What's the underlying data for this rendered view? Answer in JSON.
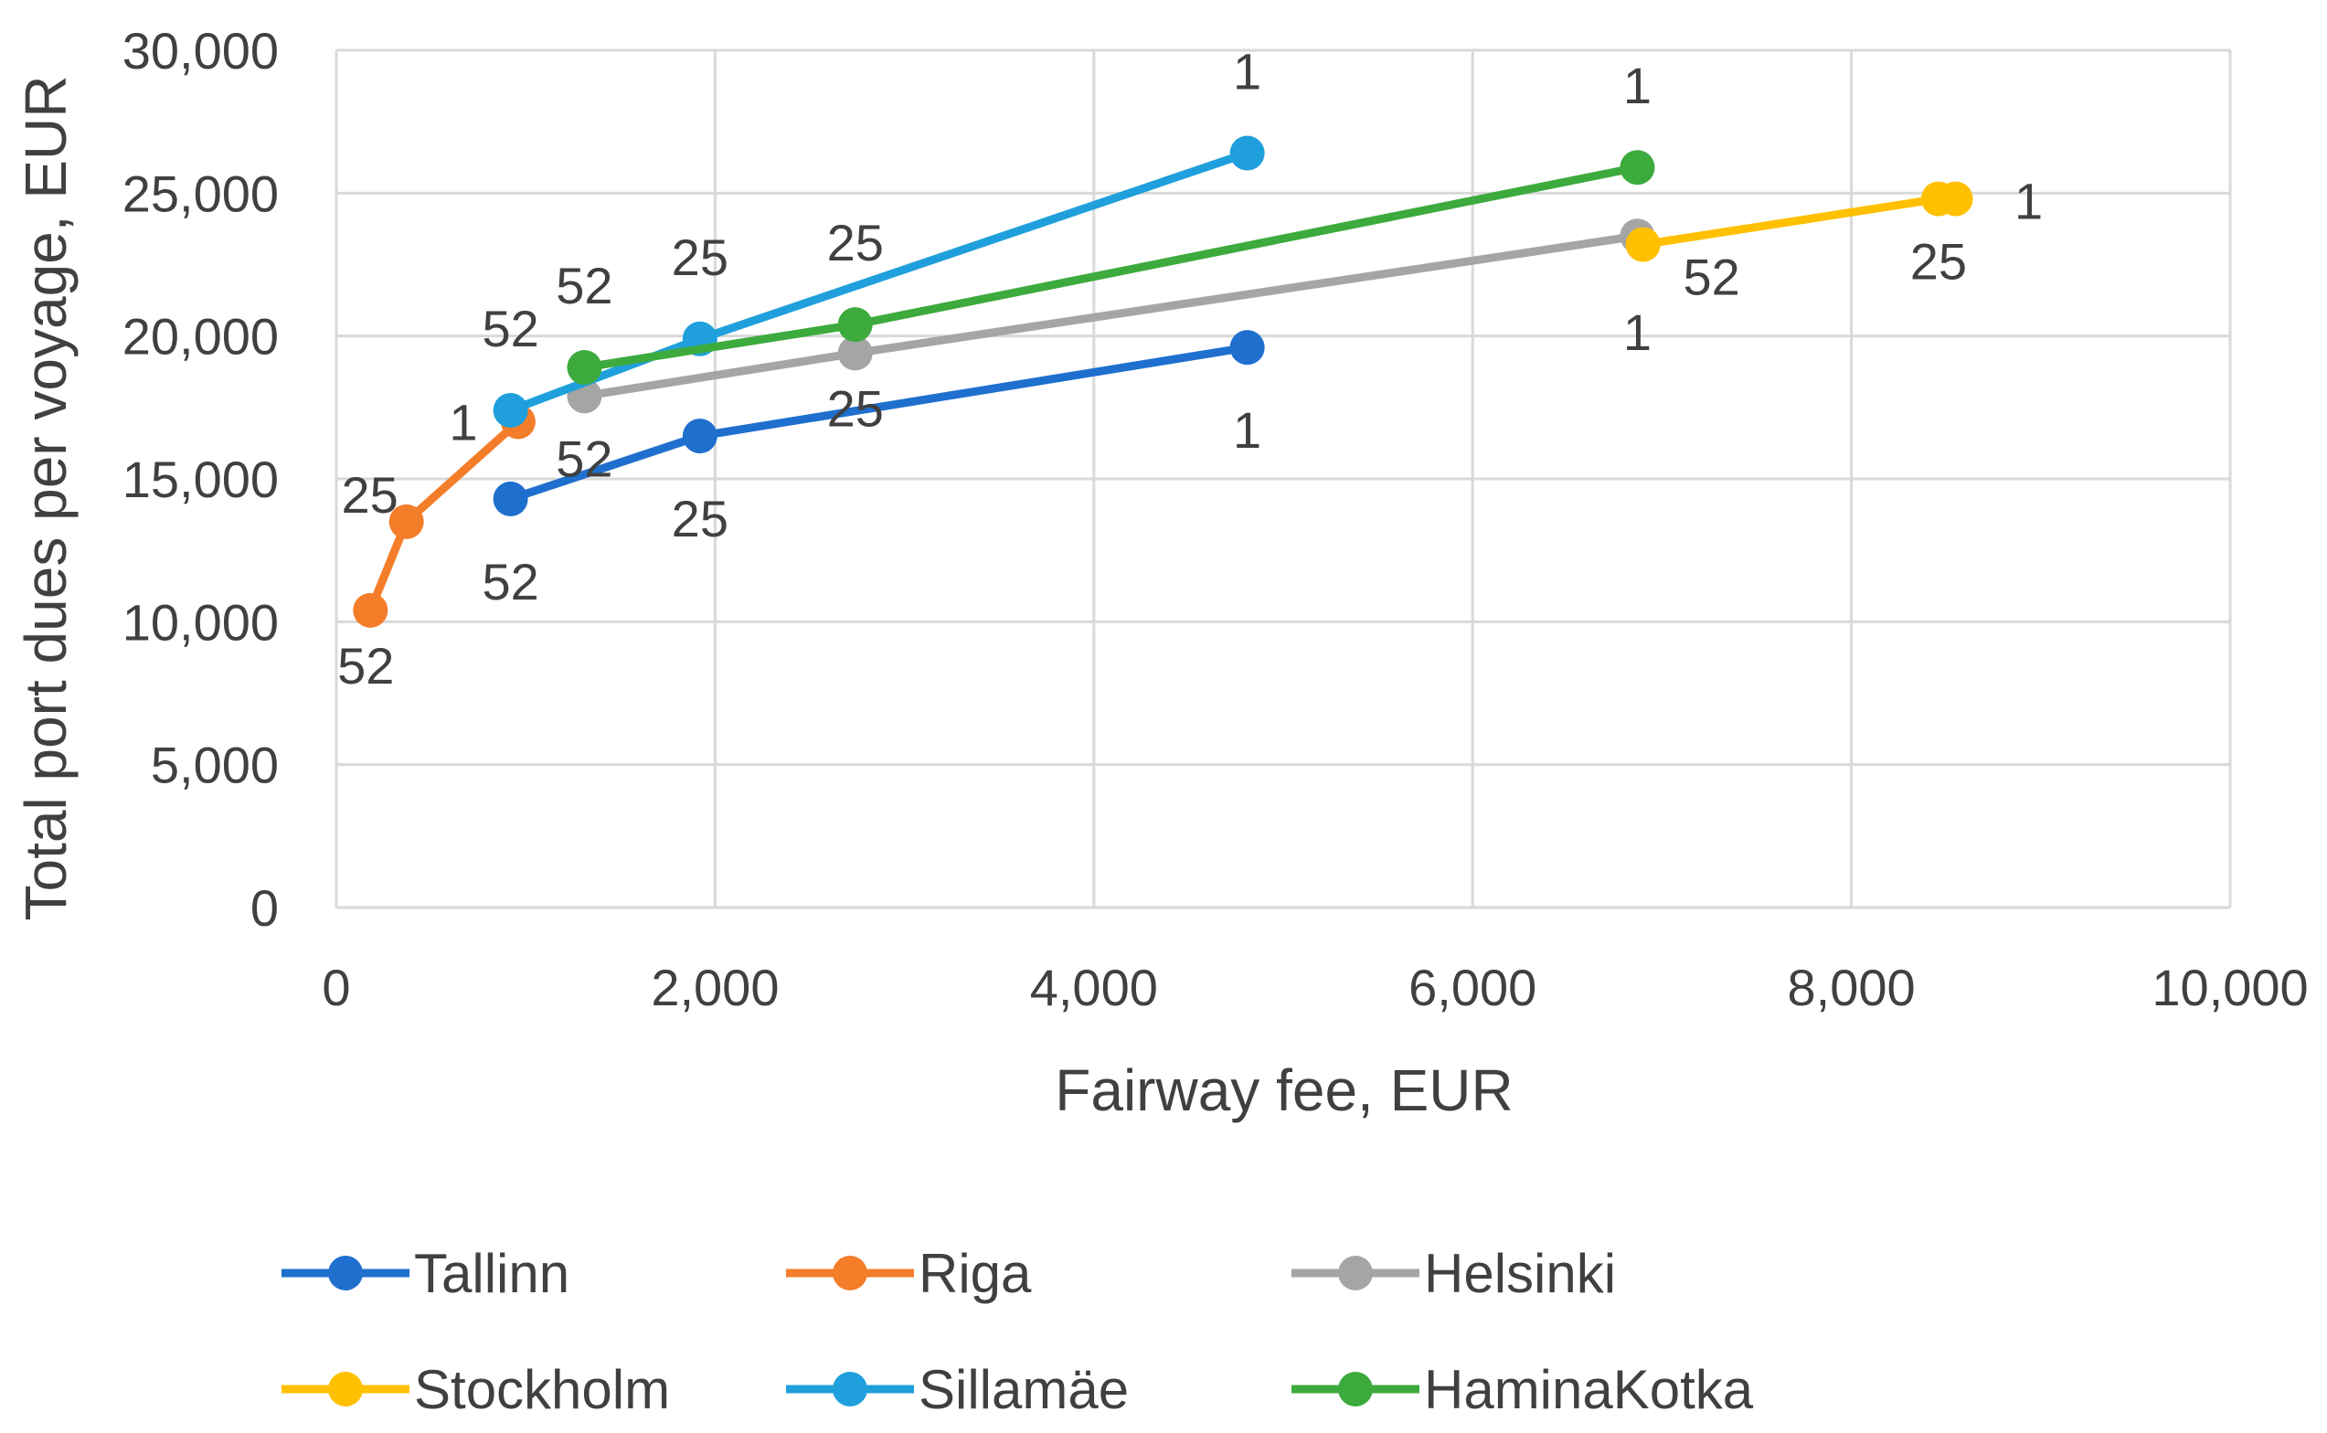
{
  "chart_data": {
    "type": "line",
    "title": "",
    "xlabel": "Fairway fee, EUR",
    "ylabel": "Total port dues per voyage, EUR",
    "xlim": [
      0,
      10000
    ],
    "ylim": [
      0,
      30000
    ],
    "xticks": [
      0,
      2000,
      4000,
      6000,
      8000,
      10000
    ],
    "yticks": [
      0,
      5000,
      10000,
      15000,
      20000,
      25000,
      30000
    ],
    "xtick_labels": [
      "0",
      "2,000",
      "4,000",
      "6,000",
      "8,000",
      "10,000"
    ],
    "ytick_labels": [
      "0",
      "5,000",
      "10,000",
      "15,000",
      "20,000",
      "25,000",
      "30,000"
    ],
    "grid": true,
    "legend_position": "bottom",
    "series": [
      {
        "name": "Tallinn",
        "color": "#1F6FCE",
        "points": [
          {
            "x": 920,
            "y": 14300,
            "label": "52"
          },
          {
            "x": 1920,
            "y": 16500,
            "label": "25"
          },
          {
            "x": 4810,
            "y": 19600,
            "label": "1"
          }
        ]
      },
      {
        "name": "Riga",
        "color": "#F47D2A",
        "points": [
          {
            "x": 180,
            "y": 10400,
            "label": "52"
          },
          {
            "x": 370,
            "y": 13500,
            "label": "25"
          },
          {
            "x": 960,
            "y": 17000,
            "label": "1"
          }
        ]
      },
      {
        "name": "Helsinki",
        "color": "#A5A5A5",
        "points": [
          {
            "x": 1310,
            "y": 17900,
            "label": "52"
          },
          {
            "x": 2740,
            "y": 19400,
            "label": "25"
          },
          {
            "x": 6870,
            "y": 23500,
            "label": "1"
          }
        ]
      },
      {
        "name": "Stockholm",
        "color": "#FFC000",
        "points": [
          {
            "x": 6900,
            "y": 23200,
            "label": "52"
          },
          {
            "x": 8460,
            "y": 24800,
            "label": "25"
          },
          {
            "x": 8550,
            "y": 24800,
            "label": "1"
          }
        ]
      },
      {
        "name": "Sillamäe",
        "color": "#1FA0DC",
        "points": [
          {
            "x": 920,
            "y": 17400,
            "label": "52"
          },
          {
            "x": 1920,
            "y": 19900,
            "label": "25"
          },
          {
            "x": 4810,
            "y": 26400,
            "label": "1"
          }
        ]
      },
      {
        "name": "HaminaKotka",
        "color": "#3DAA3D",
        "points": [
          {
            "x": 1310,
            "y": 18900,
            "label": "52"
          },
          {
            "x": 2740,
            "y": 20400,
            "label": "25"
          },
          {
            "x": 6870,
            "y": 25900,
            "label": "1"
          }
        ]
      }
    ]
  }
}
